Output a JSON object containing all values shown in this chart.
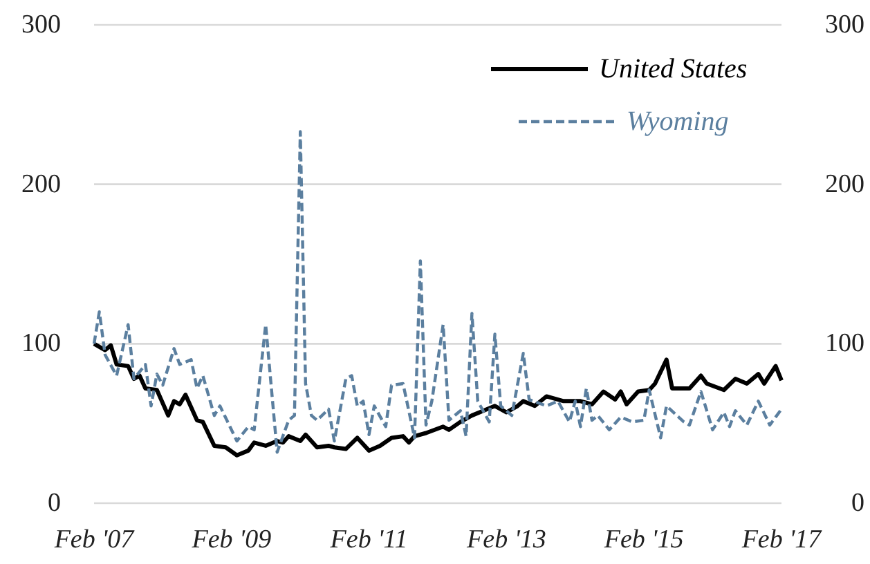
{
  "chart_data": {
    "type": "line",
    "x": [
      "2007-02",
      "2007-04",
      "2007-05",
      "2007-06",
      "2007-08",
      "2007-09",
      "2007-10",
      "2007-11",
      "2008-01",
      "2008-03",
      "2008-04",
      "2008-05",
      "2008-06",
      "2008-08",
      "2008-09",
      "2008-11",
      "2009-01",
      "2009-03",
      "2009-05",
      "2009-06",
      "2009-08",
      "2009-10",
      "2009-11",
      "2009-12",
      "2010-02",
      "2010-03",
      "2010-05",
      "2010-07",
      "2010-08",
      "2010-10",
      "2010-12",
      "2011-02",
      "2011-04",
      "2011-06",
      "2011-08",
      "2011-09",
      "2011-10",
      "2011-12",
      "2012-03",
      "2012-04",
      "2012-06",
      "2012-08",
      "2012-10",
      "2012-12",
      "2013-02",
      "2013-04",
      "2013-05",
      "2013-07",
      "2013-09",
      "2013-12",
      "2014-03",
      "2014-05",
      "2014-07",
      "2014-09",
      "2014-10",
      "2014-11",
      "2015-01",
      "2015-03",
      "2015-04",
      "2015-06",
      "2015-07",
      "2015-10",
      "2015-12",
      "2016-01",
      "2016-04",
      "2016-06",
      "2016-08",
      "2016-10",
      "2016-11",
      "2017-01",
      "2017-02"
    ],
    "series": [
      {
        "name": "United States",
        "color": "#000000",
        "line_style": "solid",
        "values": [
          100,
          96,
          99,
          87,
          86,
          78,
          80,
          72,
          71,
          55,
          64,
          62,
          68,
          52,
          51,
          36,
          35,
          30,
          33,
          38,
          36,
          39,
          38,
          42,
          39,
          43,
          35,
          36,
          35,
          34,
          41,
          33,
          36,
          41,
          42,
          38,
          42,
          44,
          48,
          46,
          51,
          55,
          58,
          61,
          57,
          61,
          64,
          61,
          67,
          64,
          64,
          62,
          70,
          65,
          70,
          62,
          70,
          71,
          75,
          90,
          72,
          72,
          80,
          75,
          71,
          78,
          75,
          81,
          75,
          86,
          77
        ]
      },
      {
        "name": "Wyoming",
        "color": "#5b7f9f",
        "line_style": "dashed",
        "x": [
          "2007-02",
          "2007-03",
          "2007-04",
          "2007-06",
          "2007-08",
          "2007-09",
          "2007-11",
          "2007-12",
          "2008-01",
          "2008-02",
          "2008-04",
          "2008-05",
          "2008-07",
          "2008-08",
          "2008-09",
          "2008-11",
          "2008-12",
          "2009-03",
          "2009-05",
          "2009-06",
          "2009-08",
          "2009-10",
          "2009-12",
          "2010-01",
          "2010-02",
          "2010-03",
          "2010-04",
          "2010-05",
          "2010-07",
          "2010-08",
          "2010-10",
          "2010-11",
          "2010-12",
          "2011-01",
          "2011-02",
          "2011-03",
          "2011-05",
          "2011-06",
          "2011-08",
          "2011-10",
          "2011-11",
          "2011-12",
          "2012-01",
          "2012-03",
          "2012-04",
          "2012-06",
          "2012-07",
          "2012-08",
          "2012-09",
          "2012-11",
          "2012-12",
          "2013-01",
          "2013-03",
          "2013-05",
          "2013-06",
          "2013-09",
          "2013-11",
          "2014-01",
          "2014-02",
          "2014-03",
          "2014-04",
          "2014-05",
          "2014-06",
          "2014-08",
          "2014-10",
          "2014-12",
          "2015-02",
          "2015-03",
          "2015-05",
          "2015-06",
          "2015-09",
          "2015-10",
          "2015-12",
          "2016-02",
          "2016-04",
          "2016-05",
          "2016-06",
          "2016-08",
          "2016-10",
          "2016-12",
          "2017-02"
        ],
        "values": [
          100,
          120,
          93,
          80,
          112,
          78,
          87,
          61,
          81,
          74,
          97,
          87,
          90,
          72,
          80,
          55,
          61,
          39,
          48,
          46,
          112,
          32,
          52,
          55,
          233,
          75,
          55,
          52,
          59,
          39,
          78,
          80,
          61,
          64,
          43,
          61,
          48,
          74,
          75,
          41,
          152,
          49,
          64,
          112,
          52,
          58,
          42,
          119,
          64,
          51,
          106,
          61,
          55,
          94,
          65,
          61,
          64,
          51,
          64,
          48,
          72,
          52,
          55,
          46,
          54,
          51,
          52,
          71,
          41,
          61,
          51,
          49,
          70,
          46,
          57,
          48,
          58,
          49,
          64,
          49,
          59
        ]
      }
    ],
    "xlim": [
      "2007-02",
      "2017-02"
    ],
    "xticks": [
      {
        "value": "2007-02",
        "label": "Feb '07"
      },
      {
        "value": "2009-02",
        "label": "Feb '09"
      },
      {
        "value": "2011-02",
        "label": "Feb '11"
      },
      {
        "value": "2013-02",
        "label": "Feb '13"
      },
      {
        "value": "2015-02",
        "label": "Feb '15"
      },
      {
        "value": "2017-02",
        "label": "Feb '17"
      }
    ],
    "ylim": [
      0,
      300
    ],
    "yticks": [
      0,
      100,
      200,
      300
    ],
    "y2lim": [
      0,
      300
    ],
    "y2ticks": [
      0,
      100,
      200,
      300
    ],
    "grid": "y",
    "legend": "top right"
  }
}
